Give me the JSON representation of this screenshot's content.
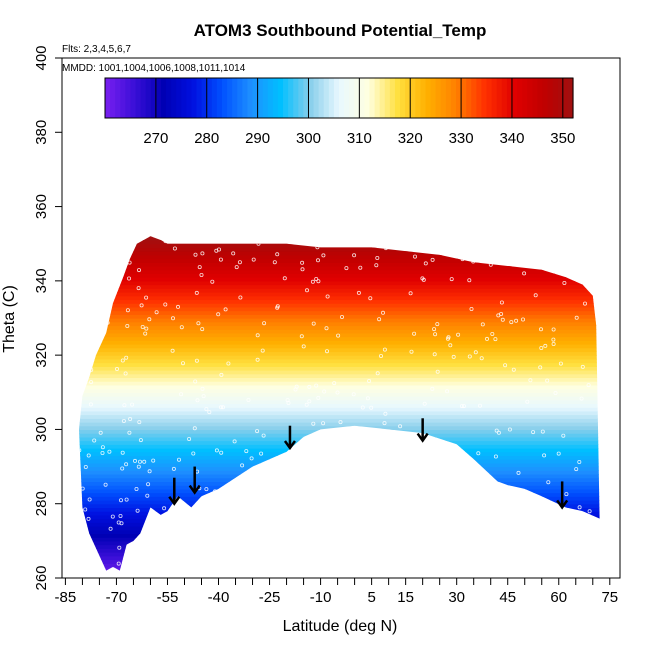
{
  "chart_data": {
    "type": "heatmap",
    "title": "ATOM3 Southbound Potential_Temp",
    "subtitle_flights": "Flts: 2,3,4,5,6,7",
    "subtitle_dates": "MMDD: 1001,1004,1006,1008,1011,1014",
    "xlabel": "Latitude (deg N)",
    "ylabel": "Theta (C)",
    "xlim": [
      -86,
      78
    ],
    "ylim": [
      260,
      400
    ],
    "x_ticks": [
      -85,
      -70,
      -55,
      -40,
      -25,
      -10,
      5,
      15,
      30,
      45,
      60,
      75
    ],
    "x_minor_ticks": [
      -80,
      -75,
      -65,
      -60,
      -50,
      -45,
      -35,
      -30,
      -20,
      -15,
      -5,
      0,
      10,
      20,
      25,
      35,
      40,
      50,
      55,
      65,
      70
    ],
    "y_ticks": [
      260,
      280,
      300,
      320,
      340,
      360,
      380,
      400
    ],
    "colorbar": {
      "min": 260,
      "max": 352,
      "ticks": [
        270,
        280,
        290,
        300,
        310,
        320,
        330,
        340,
        350
      ],
      "colors": [
        "#7a1ff0",
        "#3a0fd8",
        "#0000b4",
        "#0010e0",
        "#0050ff",
        "#1e90ff",
        "#00bfff",
        "#87ceeb",
        "#e8f8ff",
        "#ffffe0",
        "#ffe040",
        "#ffb000",
        "#ff8000",
        "#ff3000",
        "#e00000",
        "#c00000",
        "#a01010"
      ]
    },
    "upper_boundary": [
      [
        -73,
        326
      ],
      [
        -71,
        334
      ],
      [
        -68,
        341
      ],
      [
        -66,
        346
      ],
      [
        -64,
        350
      ],
      [
        -60,
        352
      ],
      [
        -57,
        351
      ],
      [
        -55,
        350
      ],
      [
        -40,
        350
      ],
      [
        -20,
        350
      ],
      [
        -10,
        349
      ],
      [
        5,
        349
      ],
      [
        15,
        348
      ],
      [
        25,
        347
      ],
      [
        35,
        345
      ],
      [
        45,
        344
      ],
      [
        55,
        343
      ],
      [
        62,
        341
      ],
      [
        67,
        339
      ],
      [
        70,
        336
      ],
      [
        71,
        328
      ]
    ],
    "lower_boundary": [
      [
        72,
        276
      ],
      [
        67,
        278
      ],
      [
        62,
        279
      ],
      [
        55,
        282
      ],
      [
        50,
        284
      ],
      [
        45,
        285
      ],
      [
        42,
        286
      ],
      [
        35,
        292
      ],
      [
        30,
        296
      ],
      [
        20,
        299
      ],
      [
        10,
        300
      ],
      [
        0,
        301
      ],
      [
        -10,
        300
      ],
      [
        -15,
        298
      ],
      [
        -20,
        294
      ],
      [
        -30,
        290
      ],
      [
        -40,
        284
      ],
      [
        -45,
        282
      ],
      [
        -48,
        279
      ],
      [
        -52,
        282
      ],
      [
        -55,
        278
      ],
      [
        -57,
        277
      ],
      [
        -60,
        279
      ],
      [
        -63,
        272
      ],
      [
        -65,
        270
      ],
      [
        -67,
        269
      ],
      [
        -69,
        262
      ],
      [
        -71,
        263
      ],
      [
        -73,
        262
      ],
      [
        -76,
        268
      ],
      [
        -78,
        272
      ],
      [
        -80,
        279
      ]
    ],
    "left_boundary": [
      [
        -80,
        279
      ],
      [
        -81,
        300
      ],
      [
        -80,
        309
      ],
      [
        -78,
        314
      ],
      [
        -76,
        320
      ],
      [
        -73,
        326
      ]
    ],
    "profile_arrows": [
      {
        "x": -53,
        "y_top": 287,
        "y_tip": 280
      },
      {
        "x": -47,
        "y_top": 290,
        "y_tip": 283
      },
      {
        "x": -19,
        "y_top": 301,
        "y_tip": 295
      },
      {
        "x": 20,
        "y_top": 303,
        "y_tip": 297
      },
      {
        "x": 61,
        "y_top": 286,
        "y_tip": 279
      }
    ]
  }
}
